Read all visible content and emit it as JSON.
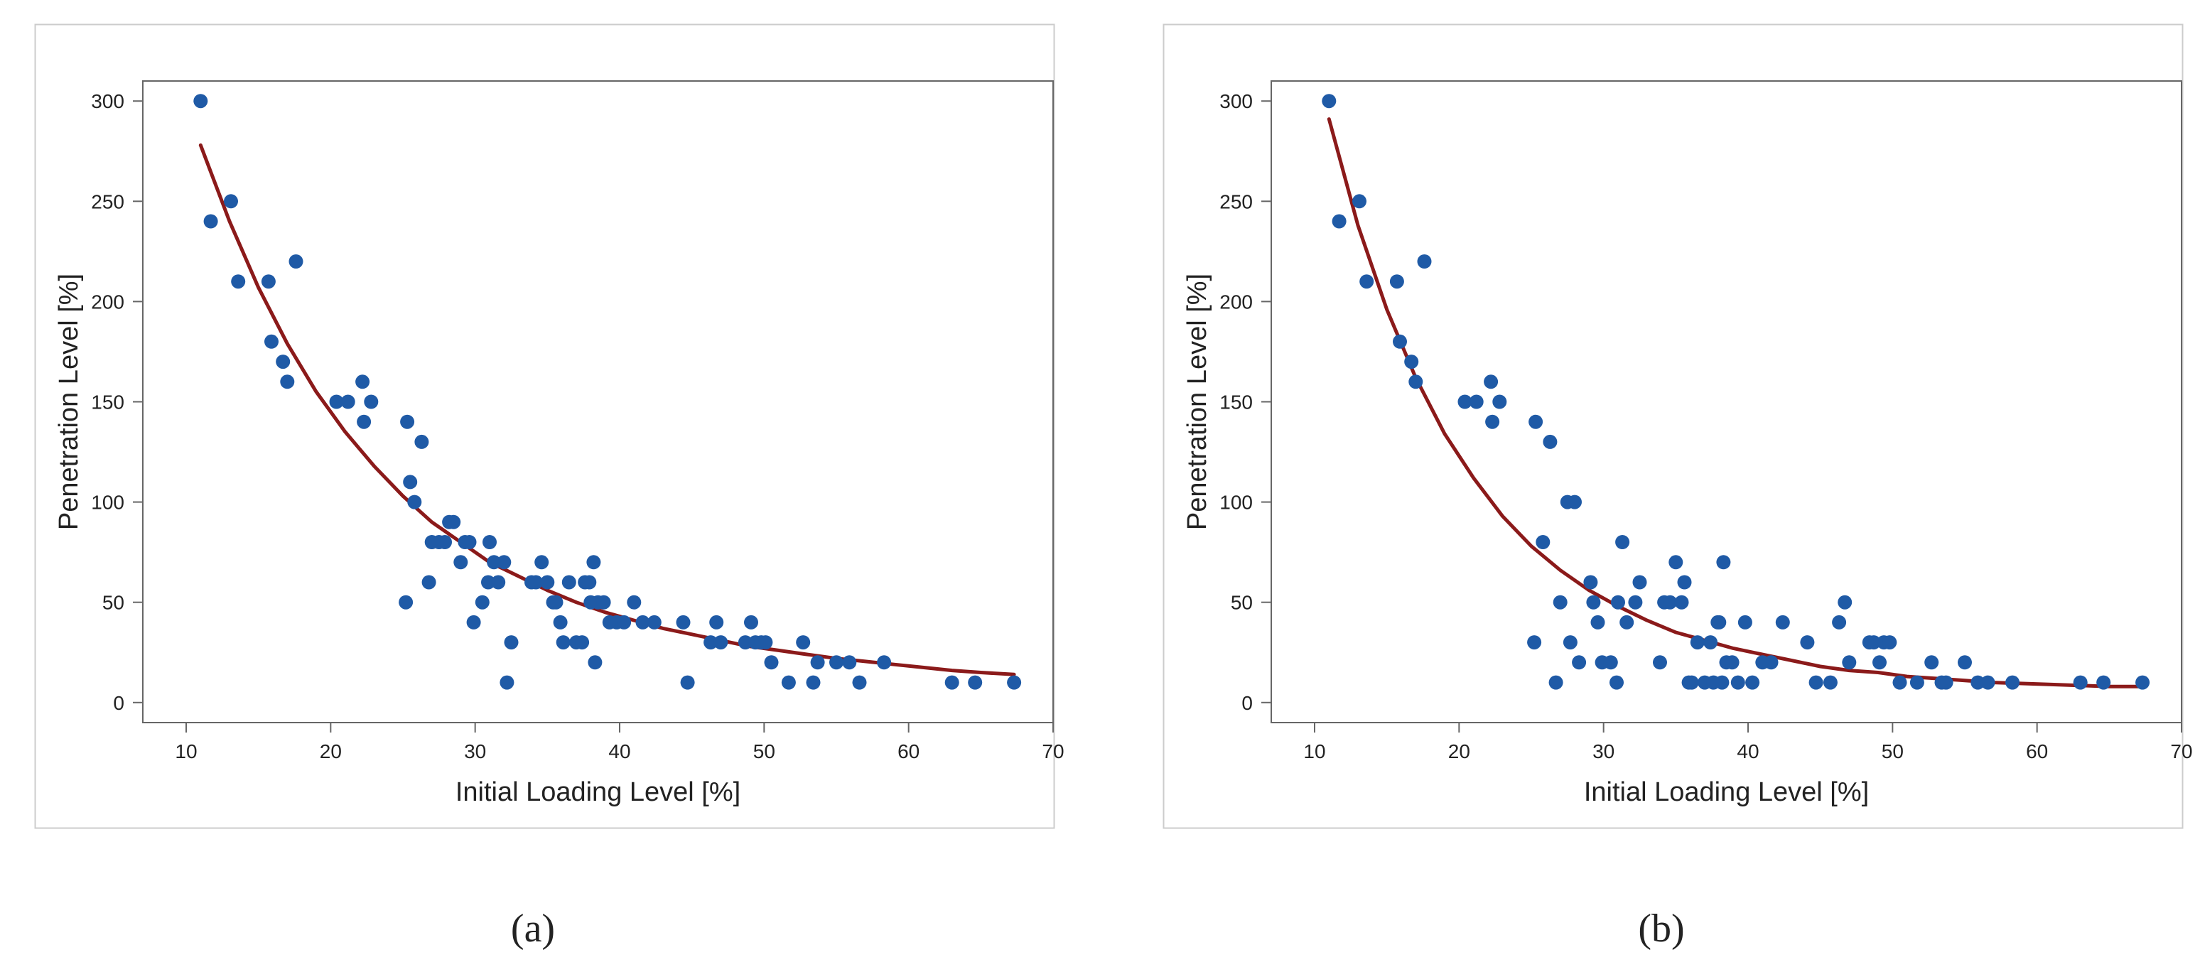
{
  "colors": {
    "points": "#1f5aa6",
    "curve": "#8b1a1a",
    "axis": "#666666",
    "frame": "#cccccc"
  },
  "captions": {
    "a": "(a)",
    "b": "(b)"
  },
  "chart_data": [
    {
      "type": "scatter",
      "xlabel": "Initial Loading Level [%]",
      "ylabel": "Penetration Level [%]",
      "xlim": [
        7,
        70
      ],
      "ylim": [
        -10,
        310
      ],
      "xticks": [
        10,
        20,
        30,
        40,
        50,
        60,
        70
      ],
      "yticks": [
        0,
        50,
        100,
        150,
        200,
        250,
        300
      ],
      "series": [
        {
          "name": "observations",
          "x": [
            11.0,
            11.7,
            13.1,
            13.6,
            15.7,
            15.9,
            16.7,
            17.0,
            17.6,
            20.4,
            21.2,
            22.2,
            22.3,
            22.8,
            25.2,
            25.3,
            25.5,
            25.8,
            26.3,
            26.8,
            27.0,
            27.5,
            27.9,
            28.2,
            28.5,
            29.0,
            29.3,
            29.6,
            29.9,
            30.5,
            30.9,
            31.0,
            31.3,
            31.6,
            32.0,
            32.2,
            32.5,
            33.9,
            34.2,
            34.6,
            35.0,
            35.4,
            35.6,
            35.9,
            36.1,
            36.5,
            37.0,
            37.4,
            37.6,
            37.9,
            38.0,
            38.2,
            38.3,
            38.5,
            38.9,
            39.3,
            39.8,
            40.3,
            41.0,
            41.6,
            42.4,
            44.4,
            44.7,
            46.3,
            46.7,
            47.0,
            48.7,
            49.1,
            49.4,
            49.8,
            50.1,
            50.5,
            51.7,
            52.7,
            53.4,
            53.7,
            55.0,
            55.9,
            56.6,
            58.3,
            63.0,
            64.6,
            67.3
          ],
          "y": [
            300,
            240,
            250,
            210,
            210,
            180,
            170,
            160,
            220,
            150,
            150,
            160,
            140,
            150,
            50,
            140,
            110,
            100,
            130,
            60,
            80,
            80,
            80,
            90,
            90,
            70,
            80,
            80,
            40,
            50,
            60,
            80,
            70,
            60,
            70,
            10,
            30,
            60,
            60,
            70,
            60,
            50,
            50,
            40,
            30,
            60,
            30,
            30,
            60,
            60,
            50,
            70,
            20,
            50,
            50,
            40,
            40,
            40,
            50,
            40,
            40,
            40,
            10,
            30,
            40,
            30,
            30,
            40,
            30,
            30,
            30,
            20,
            10,
            30,
            10,
            20,
            20,
            20,
            10,
            20,
            10,
            10,
            10
          ]
        },
        {
          "name": "fitted curve",
          "x": [
            11,
            13,
            15,
            17,
            19,
            21,
            23,
            25,
            27,
            29,
            31,
            33,
            35,
            37,
            39,
            41,
            43,
            45,
            47,
            49,
            51,
            53,
            55,
            57,
            59,
            61,
            63,
            65,
            67.3
          ],
          "y": [
            278,
            240,
            207,
            179,
            155,
            135,
            118,
            103,
            90,
            80,
            70,
            63,
            56,
            50,
            45,
            41,
            37,
            34,
            31,
            28,
            26,
            24,
            22,
            20.5,
            19,
            17.5,
            16,
            15,
            14
          ]
        }
      ]
    },
    {
      "type": "scatter",
      "xlabel": "Initial Loading Level [%]",
      "ylabel": "Penetration Level [%]",
      "xlim": [
        7,
        70
      ],
      "ylim": [
        -10,
        310
      ],
      "xticks": [
        10,
        20,
        30,
        40,
        50,
        60,
        70
      ],
      "yticks": [
        0,
        50,
        100,
        150,
        200,
        250,
        300
      ],
      "series": [
        {
          "name": "observations",
          "x": [
            11.0,
            11.7,
            13.1,
            13.6,
            15.7,
            15.9,
            16.7,
            17.0,
            17.6,
            20.4,
            21.2,
            22.2,
            22.3,
            22.8,
            25.2,
            25.3,
            25.8,
            26.3,
            26.7,
            27.0,
            27.5,
            27.7,
            28.0,
            28.3,
            29.1,
            29.3,
            29.6,
            29.9,
            30.5,
            30.9,
            31.0,
            31.3,
            31.6,
            32.2,
            32.5,
            33.9,
            34.2,
            34.6,
            35.0,
            35.4,
            35.6,
            35.9,
            36.1,
            36.5,
            37.0,
            37.4,
            37.6,
            37.9,
            38.0,
            38.2,
            38.3,
            38.5,
            38.9,
            39.3,
            39.8,
            40.3,
            41.0,
            41.6,
            42.4,
            44.1,
            44.7,
            45.7,
            46.3,
            46.7,
            47.0,
            48.4,
            48.7,
            49.1,
            49.4,
            49.8,
            50.5,
            51.7,
            52.7,
            53.4,
            53.7,
            55.0,
            55.9,
            56.6,
            58.3,
            63.0,
            64.6,
            67.3
          ],
          "y": [
            300,
            240,
            250,
            210,
            210,
            180,
            170,
            160,
            220,
            150,
            150,
            160,
            140,
            150,
            30,
            140,
            80,
            130,
            10,
            50,
            100,
            30,
            100,
            20,
            60,
            50,
            40,
            20,
            20,
            10,
            50,
            80,
            40,
            50,
            60,
            20,
            50,
            50,
            70,
            50,
            60,
            10,
            10,
            30,
            10,
            30,
            10,
            40,
            40,
            10,
            70,
            20,
            20,
            10,
            40,
            10,
            20,
            20,
            40,
            30,
            10,
            10,
            40,
            50,
            20,
            30,
            30,
            20,
            30,
            30,
            10,
            10,
            20,
            10,
            10,
            20,
            10,
            10,
            10,
            10,
            10,
            10
          ]
        },
        {
          "name": "fitted curve",
          "x": [
            11,
            13,
            15,
            17,
            19,
            21,
            23,
            25,
            27,
            29,
            31,
            33,
            35,
            37,
            39,
            41,
            43,
            45,
            47,
            49,
            51,
            53,
            55,
            57,
            59,
            61,
            63,
            65,
            67.3
          ],
          "y": [
            291,
            238,
            196,
            162,
            134,
            112,
            93,
            78,
            66,
            56,
            48,
            41,
            35,
            31,
            27,
            24,
            21,
            18,
            16,
            15,
            13,
            12,
            11,
            10,
            9.5,
            9,
            8.5,
            8,
            8
          ]
        }
      ]
    }
  ]
}
